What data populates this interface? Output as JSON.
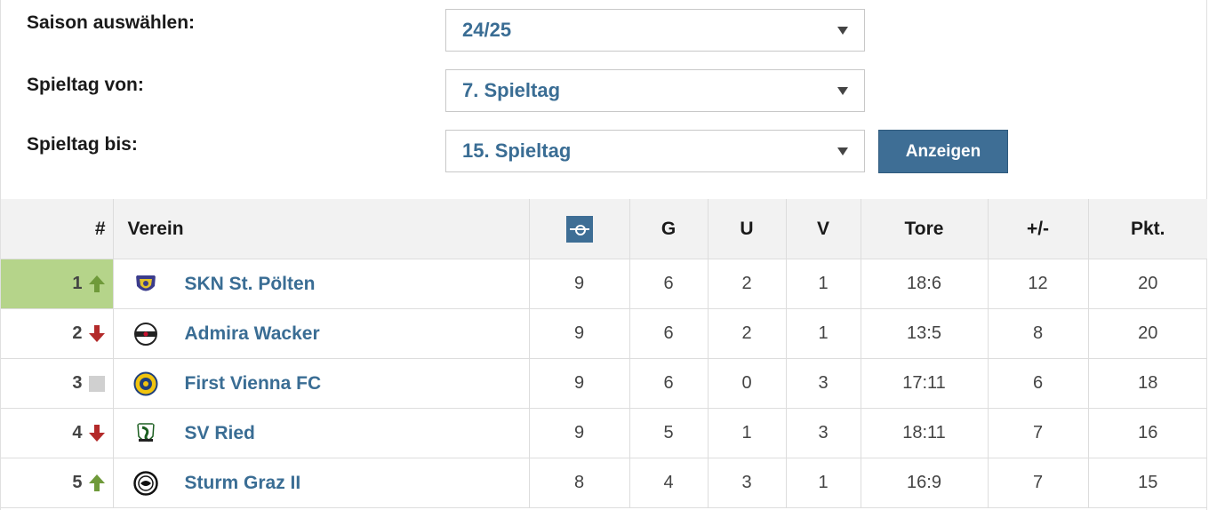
{
  "filters": {
    "season_label": "Saison auswählen:",
    "season_value": "24/25",
    "from_label": "Spieltag von:",
    "from_value": "7. Spieltag",
    "to_label": "Spieltag bis:",
    "to_value": "15. Spieltag",
    "show_button": "Anzeigen"
  },
  "table": {
    "headers": {
      "rank": "#",
      "club": "Verein",
      "matches_icon": "pitch-icon",
      "wins": "G",
      "draws": "U",
      "losses": "V",
      "goals": "Tore",
      "diff": "+/-",
      "points": "Pkt."
    },
    "rows": [
      {
        "rank": "1",
        "trend": "up",
        "club": "SKN St. Pölten",
        "logo": "skn-st-poelten-logo",
        "matches": "9",
        "wins": "6",
        "draws": "2",
        "losses": "1",
        "goals": "18:6",
        "diff": "12",
        "points": "20"
      },
      {
        "rank": "2",
        "trend": "down",
        "club": "Admira Wacker",
        "logo": "admira-wacker-logo",
        "matches": "9",
        "wins": "6",
        "draws": "2",
        "losses": "1",
        "goals": "13:5",
        "diff": "8",
        "points": "20"
      },
      {
        "rank": "3",
        "trend": "same",
        "club": "First Vienna FC",
        "logo": "first-vienna-fc-logo",
        "matches": "9",
        "wins": "6",
        "draws": "0",
        "losses": "3",
        "goals": "17:11",
        "diff": "6",
        "points": "18"
      },
      {
        "rank": "4",
        "trend": "down",
        "club": "SV Ried",
        "logo": "sv-ried-logo",
        "matches": "9",
        "wins": "5",
        "draws": "1",
        "losses": "3",
        "goals": "18:11",
        "diff": "7",
        "points": "16"
      },
      {
        "rank": "5",
        "trend": "up",
        "club": "Sturm Graz II",
        "logo": "sturm-graz-ii-logo",
        "matches": "8",
        "wins": "4",
        "draws": "3",
        "losses": "1",
        "goals": "16:9",
        "diff": "7",
        "points": "15"
      }
    ]
  },
  "colors": {
    "accent": "#3e6e95",
    "link": "#3a6d94",
    "leader_highlight": "#b5d48a",
    "trend_up": "#6f9a3a",
    "trend_down": "#b32a2a",
    "trend_same": "#d0d0d0"
  }
}
